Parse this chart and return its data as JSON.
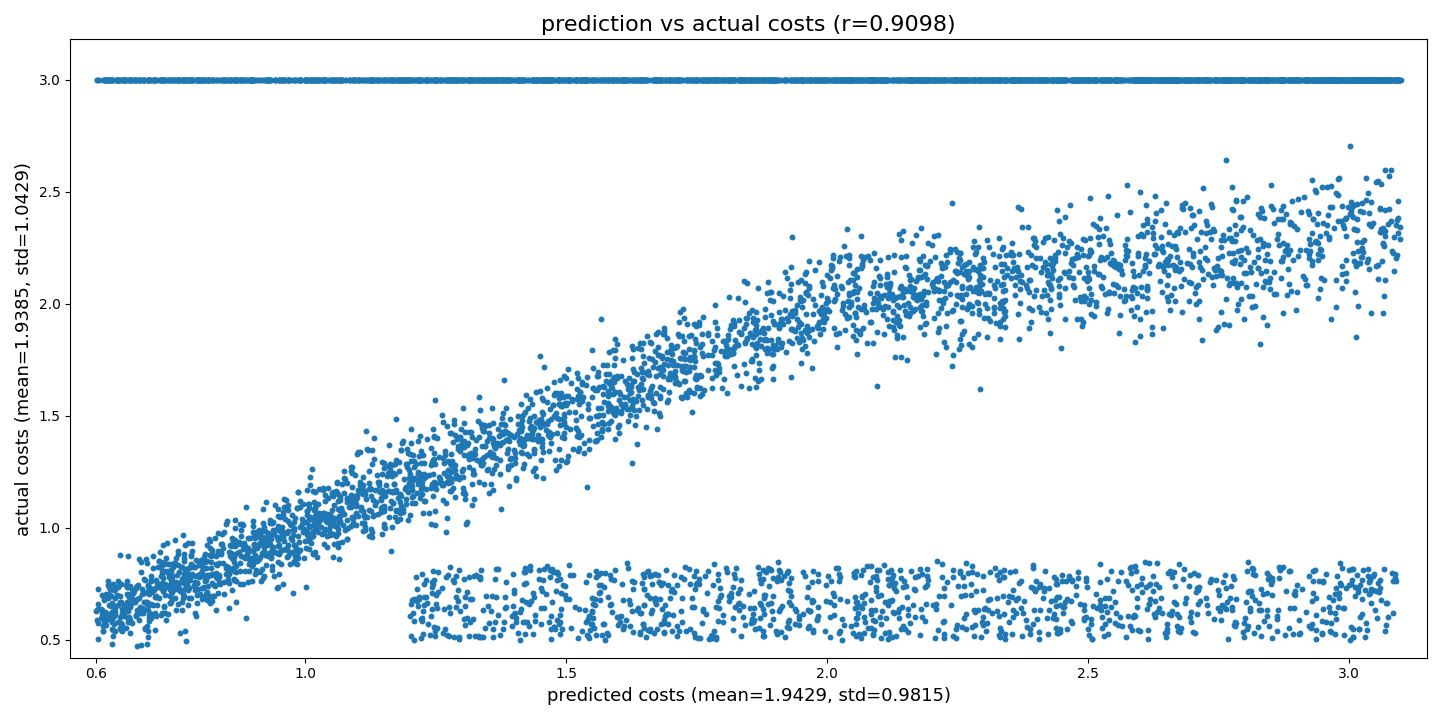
{
  "title": "prediction vs actual costs (r=0.9098)",
  "xlabel": "predicted costs (mean=1.9429, std=0.9815)",
  "ylabel": "actual costs (mean=1.9385, std=1.0429)",
  "xlim": [
    0.55,
    3.15
  ],
  "ylim": [
    0.42,
    3.18
  ],
  "color": "#1f77b4",
  "marker_size": 18,
  "alpha": 1.0,
  "seed": 42,
  "pred_mean": 1.9429,
  "pred_std": 0.9815,
  "actual_mean": 1.9385,
  "actual_std": 1.0429,
  "r": 0.9098
}
